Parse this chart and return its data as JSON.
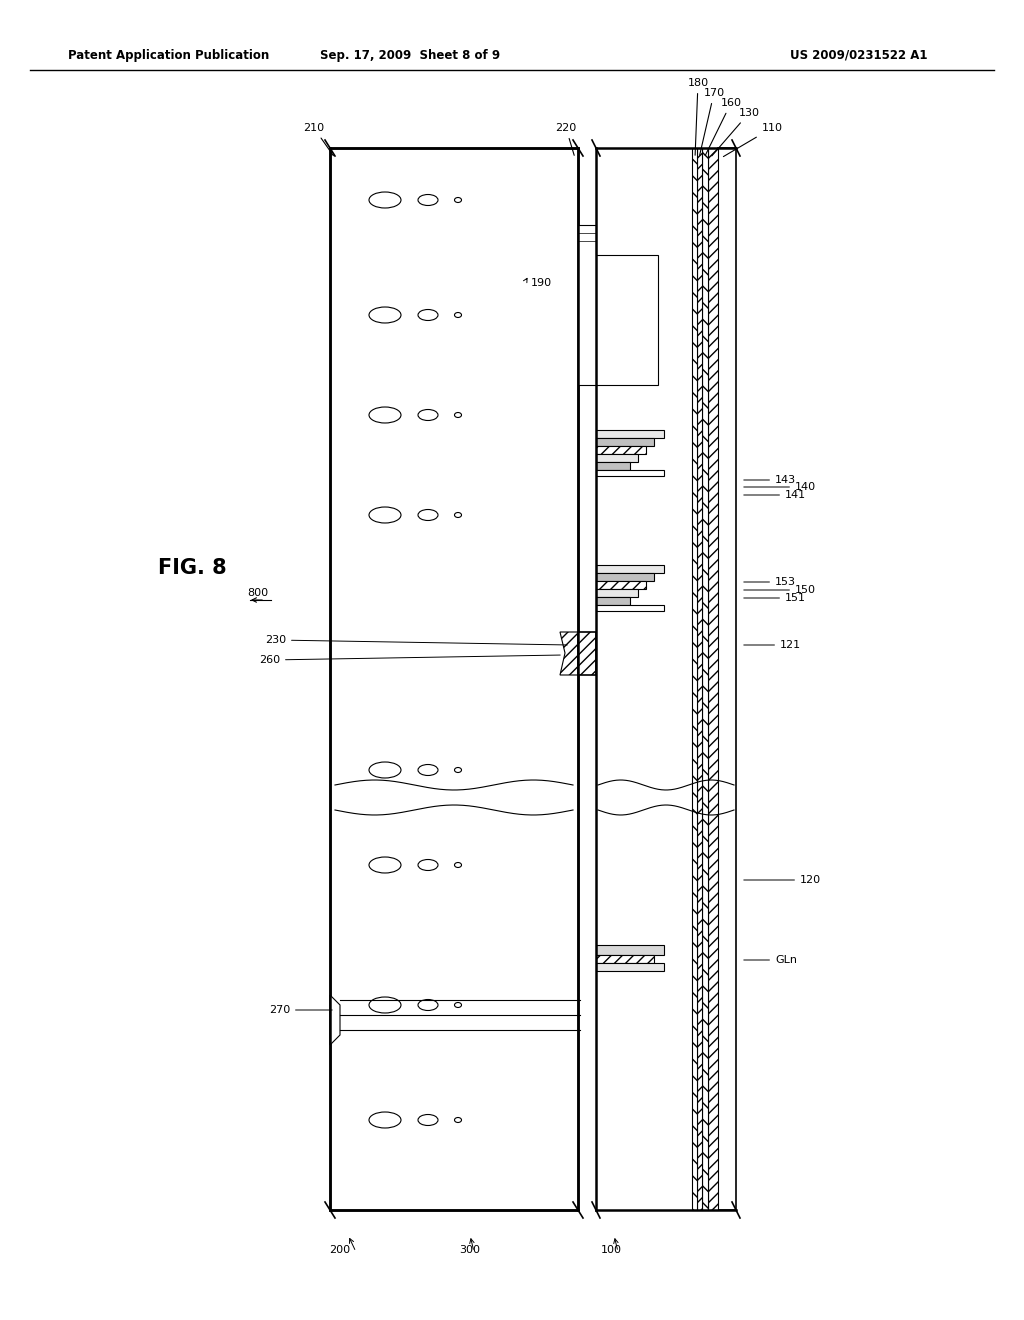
{
  "title_left": "Patent Application Publication",
  "title_mid": "Sep. 17, 2009  Sheet 8 of 9",
  "title_right": "US 2009/0231522 A1",
  "fig_label": "FIG. 8",
  "fig_number": "800",
  "bg_color": "#ffffff",
  "line_color": "#000000",
  "hatch_color": "#000000",
  "labels_top": [
    "210",
    "220",
    "180",
    "170",
    "160",
    "130",
    "110"
  ],
  "labels_right": [
    "143",
    "141",
    "140",
    "153",
    "150",
    "151",
    "121",
    "120",
    "GLn"
  ],
  "labels_left_mid": [
    "260",
    "230"
  ],
  "labels_left_bot": [
    "270"
  ],
  "labels_bottom": [
    "200",
    "300",
    "100"
  ]
}
